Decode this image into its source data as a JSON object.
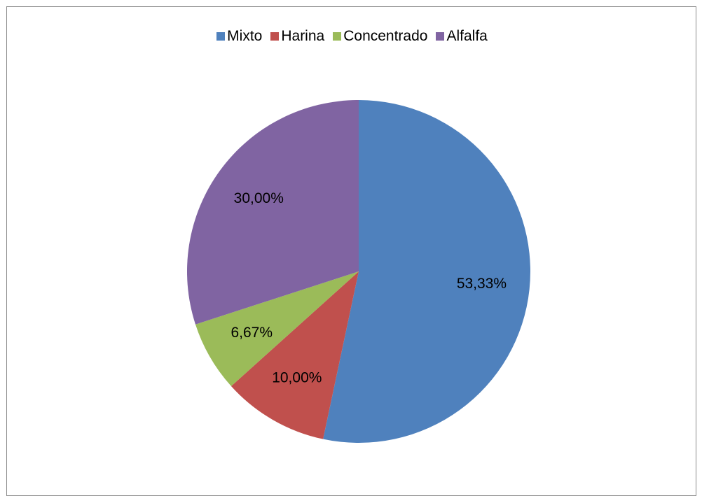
{
  "chart_data": {
    "type": "pie",
    "categories": [
      "Mixto",
      "Harina",
      "Concentrado",
      "Alfalfa"
    ],
    "values": [
      53.33,
      10.0,
      6.67,
      30.0
    ],
    "labels": [
      "53,33%",
      "10,00%",
      "6,67%",
      "30,00%"
    ],
    "colors": [
      "#4F81BD",
      "#C0504D",
      "#9BBB59",
      "#8064A2"
    ],
    "legend_position": "top",
    "start_angle": "12 o'clock",
    "direction": "clockwise"
  }
}
